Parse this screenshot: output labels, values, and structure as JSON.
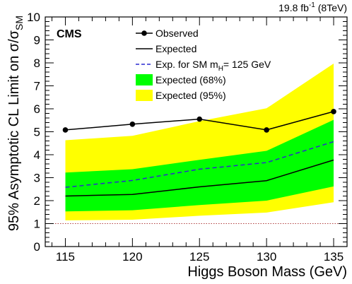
{
  "chart_data": {
    "type": "line",
    "experiment": "CMS",
    "lumi_text": "19.8 fb⁻¹ (8TeV)",
    "xlabel": "Higgs Boson Mass (GeV)",
    "ylabel": "95% Asymptotic CL Limit on σ/σSM",
    "xlim": [
      113.5,
      136
    ],
    "ylim": [
      0,
      10
    ],
    "x": [
      115,
      120,
      125,
      130,
      135
    ],
    "x_ticks": [
      115,
      120,
      125,
      130,
      135
    ],
    "y_ticks": [
      0,
      1,
      2,
      3,
      4,
      5,
      6,
      7,
      8,
      9,
      10
    ],
    "reference_line": {
      "y": 1,
      "style": "dotted",
      "color": "#b04040"
    },
    "series": [
      {
        "key": "observed",
        "name": "Observed",
        "values": [
          5.08,
          5.33,
          5.55,
          5.08,
          5.88
        ],
        "color": "#000000",
        "style": "line-markers"
      },
      {
        "key": "expected",
        "name": "Expected",
        "values": [
          2.2,
          2.27,
          2.6,
          2.87,
          3.77
        ],
        "color": "#000000",
        "style": "line"
      },
      {
        "key": "exp_sm",
        "name": "Exp. for SM mH= 125 GeV",
        "values": [
          2.58,
          2.88,
          3.37,
          3.66,
          4.57
        ],
        "color": "#2a2ad0",
        "style": "dashed"
      },
      {
        "key": "band68",
        "name": "Expected (68%)",
        "low": [
          1.53,
          1.58,
          1.81,
          2.0,
          2.62
        ],
        "high": [
          3.22,
          3.37,
          3.78,
          4.17,
          5.52
        ],
        "color": "#00ff00",
        "style": "band"
      },
      {
        "key": "band95",
        "name": "Expected (95%)",
        "low": [
          1.14,
          1.17,
          1.34,
          1.48,
          1.93
        ],
        "high": [
          4.63,
          4.82,
          5.46,
          6.02,
          7.97
        ],
        "color": "#ffff00",
        "style": "band"
      }
    ],
    "legend": {
      "placement": "top-center",
      "entries": [
        {
          "label": "Observed",
          "series": "observed"
        },
        {
          "label": "Expected",
          "series": "expected"
        },
        {
          "label": "Exp. for SM mH= 125 GeV",
          "series": "exp_sm"
        },
        {
          "label": "Expected (68%)",
          "series": "band68"
        },
        {
          "label": "Expected (95%)",
          "series": "band95"
        }
      ]
    }
  }
}
